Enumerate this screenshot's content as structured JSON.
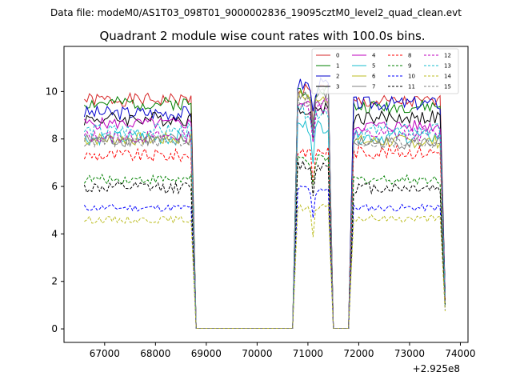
{
  "figure": {
    "suptitle": "Data file: modeM0/AS1T03_098T01_9000002836_19095cztM0_level2_quad_clean.evt",
    "title": "Quadrant 2 module wise count rates with 100.0s bins."
  },
  "chart_data": {
    "type": "line",
    "title": "Quadrant 2 module wise count rates with 100.0s bins.",
    "xlabel": "",
    "ylabel": "",
    "x_offset_label": "+2.925e8",
    "xlim": [
      66200,
      74150
    ],
    "ylim": [
      -0.57,
      11.9
    ],
    "xticks": [
      67000,
      68000,
      69000,
      70000,
      71000,
      72000,
      73000,
      74000
    ],
    "yticks": [
      0,
      2,
      4,
      6,
      8,
      10
    ],
    "legend_position": "top-right",
    "legend_columns": 4,
    "segments": [
      {
        "start": 66600,
        "end": 68700
      },
      {
        "start": 70800,
        "end": 71400
      },
      {
        "start": 71900,
        "end": 73600
      }
    ],
    "gap_start": [
      68800,
      71500
    ],
    "gap_end": [
      70700,
      71800
    ],
    "series": [
      {
        "name": "0",
        "color": "#d62728",
        "dash": "solid",
        "base1": 9.65,
        "base2": 10.1,
        "base3": 9.55,
        "amp": 0.28,
        "seed": 1
      },
      {
        "name": "1",
        "color": "#008000",
        "dash": "solid",
        "base1": 9.5,
        "base2": 10.05,
        "base3": 9.35,
        "amp": 0.28,
        "seed": 2
      },
      {
        "name": "2",
        "color": "#0000cc",
        "dash": "solid",
        "base1": 9.1,
        "base2": 10.3,
        "base3": 9.5,
        "amp": 0.3,
        "seed": 3
      },
      {
        "name": "3",
        "color": "#000000",
        "dash": "solid",
        "base1": 8.85,
        "base2": 9.3,
        "base3": 8.9,
        "amp": 0.3,
        "seed": 4
      },
      {
        "name": "4",
        "color": "#bf00bf",
        "dash": "solid",
        "base1": 8.65,
        "base2": 9.55,
        "base3": 8.55,
        "amp": 0.25,
        "seed": 5
      },
      {
        "name": "5",
        "color": "#17becf",
        "dash": "solid",
        "base1": 8.05,
        "base2": 8.55,
        "base3": 8.1,
        "amp": 0.3,
        "seed": 6
      },
      {
        "name": "6",
        "color": "#bcbd22",
        "dash": "solid",
        "base1": 8.0,
        "base2": 9.8,
        "base3": 7.9,
        "amp": 0.28,
        "seed": 7
      },
      {
        "name": "7",
        "color": "#808080",
        "dash": "solid",
        "base1": 7.95,
        "base2": 9.9,
        "base3": 7.85,
        "amp": 0.28,
        "seed": 8
      },
      {
        "name": "8",
        "color": "#ff0000",
        "dash": "dashed",
        "base1": 7.3,
        "base2": 7.5,
        "base3": 7.45,
        "amp": 0.28,
        "seed": 9
      },
      {
        "name": "9",
        "color": "#008000",
        "dash": "dashed",
        "base1": 6.3,
        "base2": 7.15,
        "base3": 6.3,
        "amp": 0.2,
        "seed": 10
      },
      {
        "name": "10",
        "color": "#0000ff",
        "dash": "dashed",
        "base1": 5.1,
        "base2": 5.9,
        "base3": 5.1,
        "amp": 0.15,
        "seed": 11
      },
      {
        "name": "11",
        "color": "#000000",
        "dash": "dashed",
        "base1": 5.95,
        "base2": 6.9,
        "base3": 5.95,
        "amp": 0.25,
        "seed": 12
      },
      {
        "name": "12",
        "color": "#bf00bf",
        "dash": "dashed",
        "base1": 8.1,
        "base2": 9.3,
        "base3": 8.2,
        "amp": 0.28,
        "seed": 13
      },
      {
        "name": "13",
        "color": "#17becf",
        "dash": "dashed",
        "base1": 8.35,
        "base2": 9.15,
        "base3": 8.35,
        "amp": 0.3,
        "seed": 14
      },
      {
        "name": "14",
        "color": "#bcbd22",
        "dash": "dashed",
        "base1": 4.6,
        "base2": 5.1,
        "base3": 4.65,
        "amp": 0.15,
        "seed": 15
      },
      {
        "name": "15",
        "color": "#808080",
        "dash": "dashed",
        "base1": 7.9,
        "base2": 9.55,
        "base3": 7.85,
        "amp": 0.25,
        "seed": 16
      }
    ]
  }
}
